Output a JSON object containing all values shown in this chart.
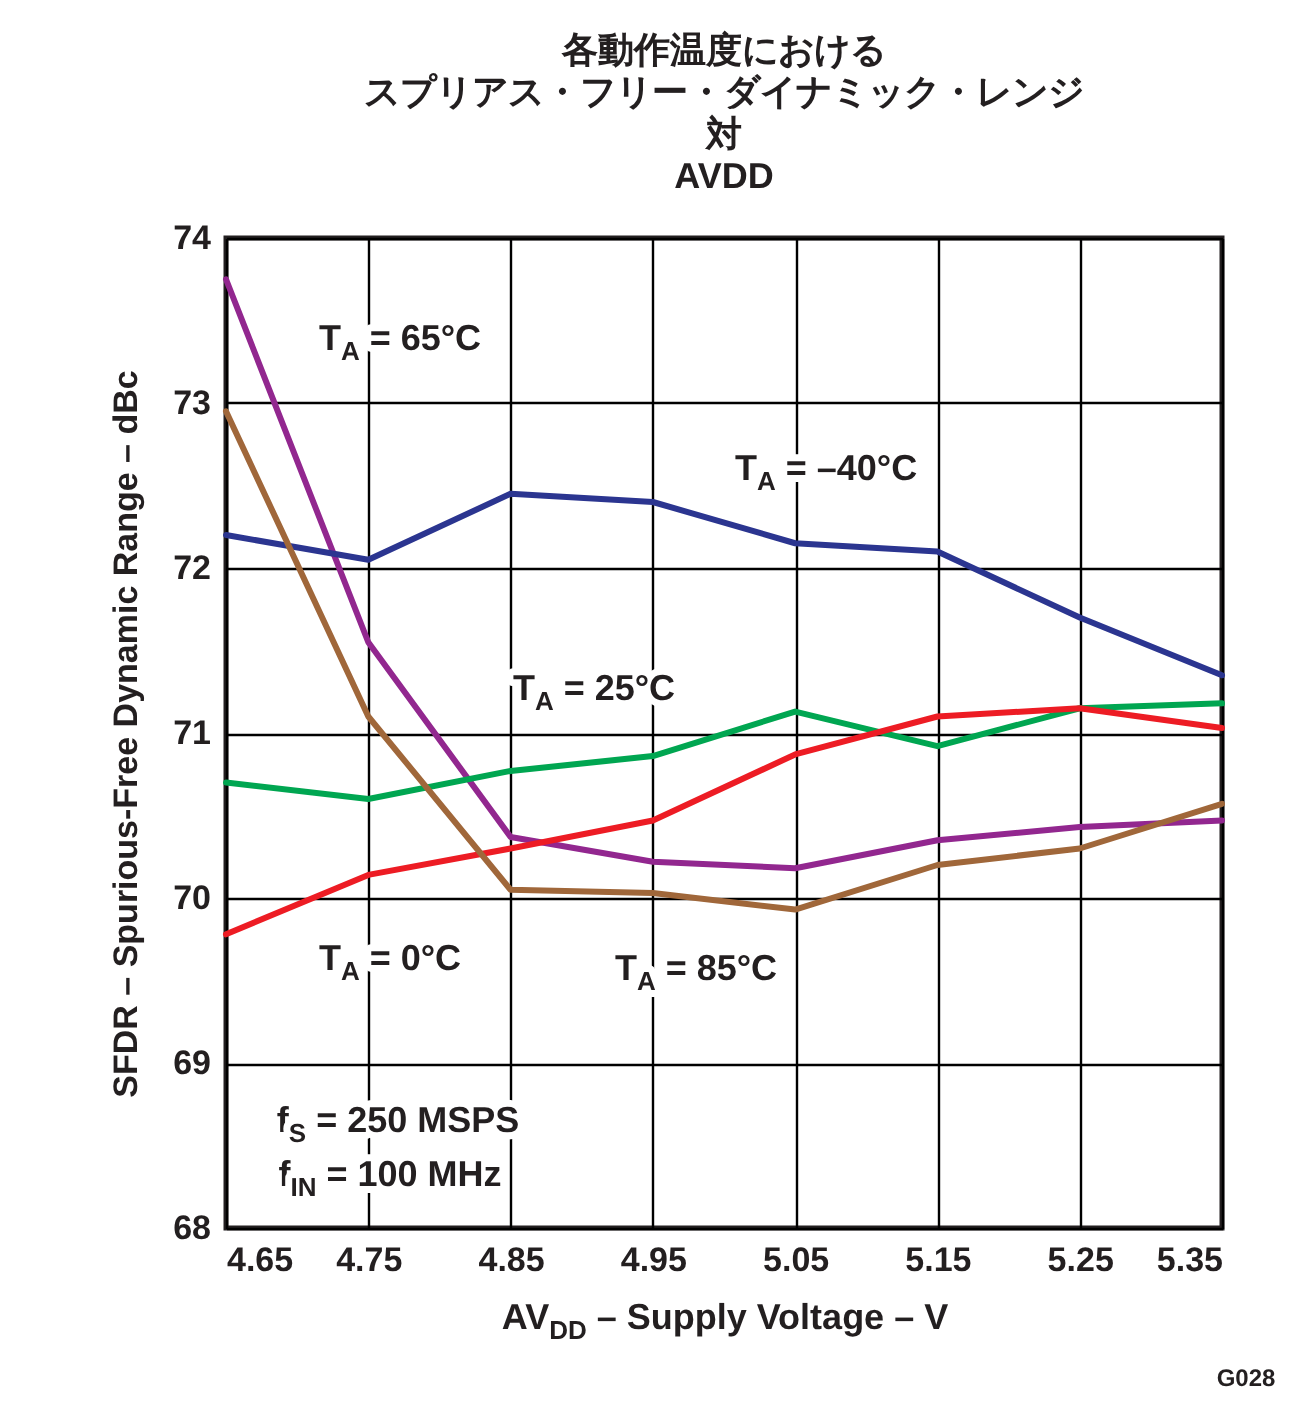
{
  "chart_data": {
    "type": "line",
    "title": "各動作温度におけるスプリアス・フリー・ダイナミック・レンジ対AVDD",
    "xlabel": "AV$_{DD}$ – Supply Voltage – V",
    "ylabel": "SFDR – Spurious-Free Dynamic Range – dBc",
    "x": [
      4.65,
      4.75,
      4.85,
      4.95,
      5.05,
      5.15,
      5.25,
      5.35
    ],
    "series": [
      {
        "name": "T$_{A}$ = 65°C",
        "color": "#92278f",
        "values": [
          73.75,
          71.55,
          70.37,
          70.22,
          70.18,
          70.35,
          70.43,
          70.47
        ]
      },
      {
        "name": "T$_{A}$ = –40°C",
        "color": "#2b3590",
        "values": [
          72.2,
          72.05,
          72.45,
          72.4,
          72.15,
          72.1,
          71.7,
          71.35
        ]
      },
      {
        "name": "T$_{A}$ = 25°C",
        "color": "#00a651",
        "values": [
          70.7,
          70.6,
          70.77,
          70.86,
          71.13,
          70.92,
          71.15,
          71.18
        ]
      },
      {
        "name": "T$_{A}$ = 0°C",
        "color": "#ed1c24",
        "values": [
          69.78,
          70.14,
          70.3,
          70.47,
          70.87,
          71.1,
          71.15,
          71.03
        ]
      },
      {
        "name": "T$_{A}$ = 85°C",
        "color": "#a0673a",
        "values": [
          72.95,
          71.1,
          70.05,
          70.03,
          69.93,
          70.2,
          70.3,
          70.57
        ]
      }
    ],
    "xlim": [
      4.65,
      5.35
    ],
    "xticks": [
      4.65,
      4.75,
      4.85,
      4.95,
      5.05,
      5.15,
      5.25,
      5.35
    ],
    "ylim": [
      68,
      74
    ],
    "yticks": [
      68,
      69,
      70,
      71,
      72,
      73,
      74
    ],
    "grid": true,
    "legend": false,
    "marker": "none",
    "line_style": "solid",
    "annotations": [
      "f$_{S}$ = 250 MSPS",
      "f$_{IN}$ = 100 MHz",
      "G028"
    ]
  }
}
